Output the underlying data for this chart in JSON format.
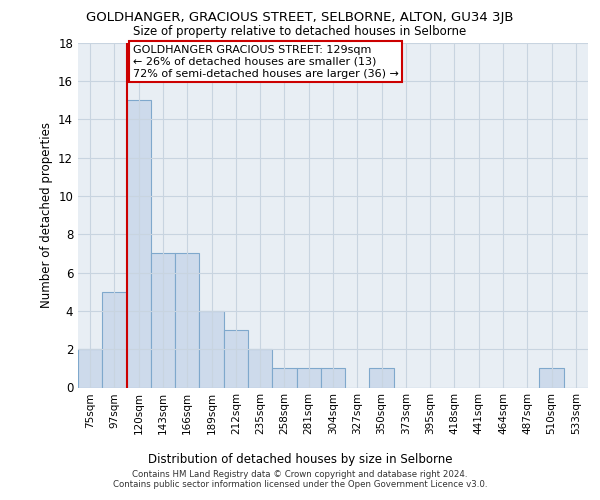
{
  "title": "GOLDHANGER, GRACIOUS STREET, SELBORNE, ALTON, GU34 3JB",
  "subtitle": "Size of property relative to detached houses in Selborne",
  "xlabel": "Distribution of detached houses by size in Selborne",
  "ylabel": "Number of detached properties",
  "footnote": "Contains HM Land Registry data © Crown copyright and database right 2024.\nContains public sector information licensed under the Open Government Licence v3.0.",
  "bar_labels": [
    "75sqm",
    "97sqm",
    "120sqm",
    "143sqm",
    "166sqm",
    "189sqm",
    "212sqm",
    "235sqm",
    "258sqm",
    "281sqm",
    "304sqm",
    "327sqm",
    "350sqm",
    "373sqm",
    "395sqm",
    "418sqm",
    "441sqm",
    "464sqm",
    "487sqm",
    "510sqm",
    "533sqm"
  ],
  "bar_heights": [
    2,
    5,
    15,
    7,
    7,
    4,
    3,
    2,
    1,
    1,
    1,
    0,
    1,
    0,
    0,
    0,
    0,
    0,
    0,
    1,
    0
  ],
  "bar_color": "#cddaeb",
  "bar_edgecolor": "#7fa8cc",
  "vline_bar_index": 2,
  "ylim": [
    0,
    18
  ],
  "yticks": [
    0,
    2,
    4,
    6,
    8,
    10,
    12,
    14,
    16,
    18
  ],
  "annotation_title": "GOLDHANGER GRACIOUS STREET: 129sqm",
  "annotation_line1": "← 26% of detached houses are smaller (13)",
  "annotation_line2": "72% of semi-detached houses are larger (36) →",
  "annotation_box_facecolor": "#ffffff",
  "annotation_box_edgecolor": "#cc0000",
  "vline_color": "#cc0000",
  "grid_color": "#c8d4e0",
  "background_color": "#e8eef4"
}
